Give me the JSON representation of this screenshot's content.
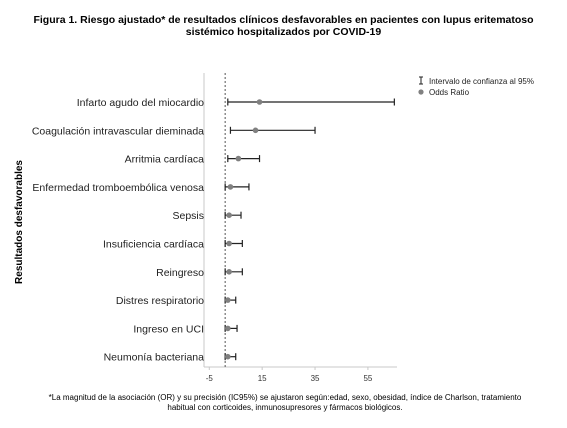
{
  "title_line1": "Figura 1. Riesgo ajustado* de resultados clínicos desfavorables en pacientes con lupus eritematoso",
  "title_line2": "sistémico hospitalizados por COVID-19",
  "footnote_line1": "*La magnitud de la asociación (OR) y su precisión (IC95%) se ajustaron según:edad, sexo, obesidad, índice de Charlson, tratamiento",
  "footnote_line2": "habitual con corticoides, inmunosupresores y fármacos biológicos.",
  "chart_data": {
    "type": "scatter",
    "ylabel": "Resultados desfavorables",
    "xlabel": "",
    "xlim": [
      -7,
      66
    ],
    "xticks": [
      -5,
      15,
      35,
      55
    ],
    "reference_line": 1,
    "grid": false,
    "legend": {
      "placement": "top-right",
      "entries": [
        {
          "symbol": "I",
          "label": "Intervalo de confianza al 95%"
        },
        {
          "symbol": "●",
          "label": "Odds Ratio"
        }
      ]
    },
    "colors": {
      "marker": "#808080",
      "whisker": "#222222",
      "reference": "#555555",
      "axis": "#c8c8c8"
    },
    "categories": [
      "Infarto agudo del miocardio",
      "Coagulación intravascular dieminada",
      "Arritmia cardíaca",
      "Enfermedad tromboembólica venosa",
      "Sepsis",
      "Insuficiencia cardíaca",
      "Reingreso",
      "Distres respiratorio",
      "Ingreso en UCI",
      "Neumonía bacteriana"
    ],
    "points": [
      {
        "or": 14.0,
        "lower": 2.0,
        "upper": 65.0
      },
      {
        "or": 12.5,
        "lower": 3.0,
        "upper": 35.0
      },
      {
        "or": 6.0,
        "lower": 2.0,
        "upper": 14.0
      },
      {
        "or": 3.0,
        "lower": 1.0,
        "upper": 10.0
      },
      {
        "or": 2.5,
        "lower": 1.0,
        "upper": 7.0
      },
      {
        "or": 2.5,
        "lower": 1.0,
        "upper": 7.5
      },
      {
        "or": 2.5,
        "lower": 1.0,
        "upper": 7.5
      },
      {
        "or": 2.0,
        "lower": 1.0,
        "upper": 5.0
      },
      {
        "or": 2.0,
        "lower": 1.0,
        "upper": 5.5
      },
      {
        "or": 2.0,
        "lower": 1.0,
        "upper": 5.0
      }
    ]
  }
}
